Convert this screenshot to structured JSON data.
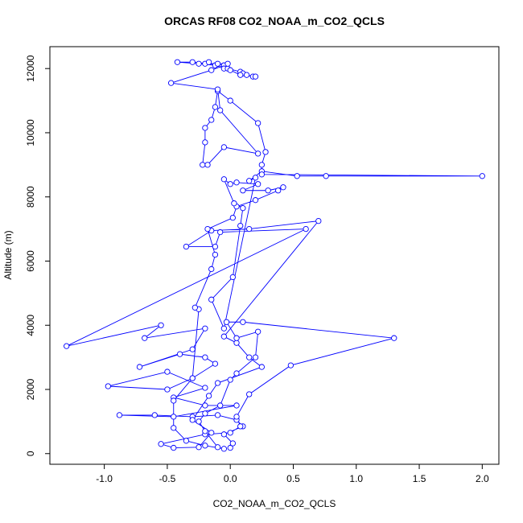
{
  "chart_data": {
    "type": "line",
    "title": "ORCAS RF08 CO2_NOAA_m_CO2_QCLS",
    "xlabel": "CO2_NOAA_m_CO2_QCLS",
    "ylabel": "Altitude (m)",
    "color": "#0000ff",
    "xlim": [
      -1.432,
      2.132
    ],
    "ylim": [
      -332,
      12682
    ],
    "xticks": [
      {
        "value": -1,
        "label": "-1.0"
      },
      -0.5,
      {
        "value": 0,
        "label": "0.0"
      },
      0.5,
      {
        "value": 1,
        "label": "1.0"
      },
      1.5,
      {
        "value": 2,
        "label": "2.0"
      }
    ],
    "yticks": [
      0,
      2000,
      4000,
      6000,
      8000,
      10000,
      12000
    ],
    "x": [
      0.0,
      0.02,
      -0.05,
      0.1,
      0.05,
      -0.1,
      -0.3,
      -0.6,
      -0.88,
      -0.45,
      0.05,
      -0.2,
      -0.45,
      -0.2,
      -0.5,
      -0.97,
      -0.5,
      -0.3,
      -0.12,
      -0.2,
      -0.4,
      -0.72,
      -0.3,
      -0.2,
      -0.68,
      -0.55,
      -1.3,
      0.6,
      -0.08,
      -0.12,
      -0.35,
      -0.15,
      0.15,
      0.7,
      -0.05,
      0.05,
      0.15,
      0.25,
      -0.1,
      -0.17,
      -0.3,
      -0.15,
      -0.25,
      -0.45,
      -0.55,
      -0.2,
      0,
      0.08,
      0.05,
      0.15,
      0.48,
      1.3,
      0.1,
      -0.03,
      0.05,
      0.22,
      0.2,
      0.05,
      0,
      -0.08,
      -0.2,
      -0.25,
      -0.2,
      -0.1,
      -0.05,
      -0.2,
      -0.35,
      -0.45,
      -0.45,
      -0.3,
      -0.25,
      -0.28,
      -0.15,
      -0.12,
      -0.18,
      0.02,
      0.05,
      0.2,
      0.38,
      0.42,
      0.3,
      0.1,
      0.22,
      0.05,
      0,
      -0.05,
      0.03,
      0.1,
      0.08,
      0.02,
      -0.15,
      -0.05,
      0.2,
      0.15,
      0.25,
      0.53,
      0.76,
      2.0,
      0.25,
      0.25,
      0.28,
      0.22,
      0.0,
      -0.1,
      -0.12,
      -0.15,
      -0.2,
      -0.2,
      -0.22,
      -0.18,
      -0.05,
      0.22,
      -0.08,
      -0.1,
      -0.47,
      -0.15,
      -0.05,
      -0.3,
      -0.42,
      -0.25,
      -0.12,
      -0.05,
      -0.02,
      0.08,
      0.1,
      0.13,
      0.18,
      0.2,
      0.08,
      0.0,
      -0.02,
      -0.1,
      -0.2,
      -0.17
    ],
    "values": [
      180,
      320,
      600,
      850,
      1050,
      1200,
      1150,
      1200,
      1200,
      1150,
      1500,
      1500,
      1750,
      2050,
      2550,
      2100,
      2000,
      2350,
      2800,
      3000,
      3100,
      2700,
      3250,
      3900,
      3600,
      4000,
      3350,
      7000,
      6900,
      6450,
      6450,
      6950,
      7000,
      7250,
      3650,
      3450,
      3000,
      2700,
      2200,
      1800,
      1050,
      650,
      200,
      180,
      300,
      600,
      650,
      850,
      1150,
      1850,
      2750,
      3600,
      4100,
      4100,
      3600,
      3800,
      3000,
      2500,
      2300,
      1500,
      1250,
      1000,
      700,
      200,
      150,
      250,
      400,
      800,
      1650,
      2350,
      4500,
      4550,
      5750,
      6200,
      7000,
      7350,
      7700,
      7900,
      8200,
      8300,
      8200,
      8200,
      8400,
      8450,
      8400,
      8550,
      7800,
      7650,
      7100,
      5500,
      4800,
      3900,
      8600,
      8500,
      8800,
      8650,
      8650,
      8650,
      8700,
      9000,
      9400,
      10300,
      11000,
      11300,
      10800,
      10400,
      10150,
      9700,
      9000,
      9000,
      9550,
      9350,
      10700,
      11350,
      11550,
      11950,
      12100,
      12200,
      12200,
      12150,
      12100,
      12000,
      12000,
      11900,
      11850,
      11800,
      11750,
      11750,
      11800,
      11950,
      12150,
      12150,
      12150,
      12200
    ]
  }
}
